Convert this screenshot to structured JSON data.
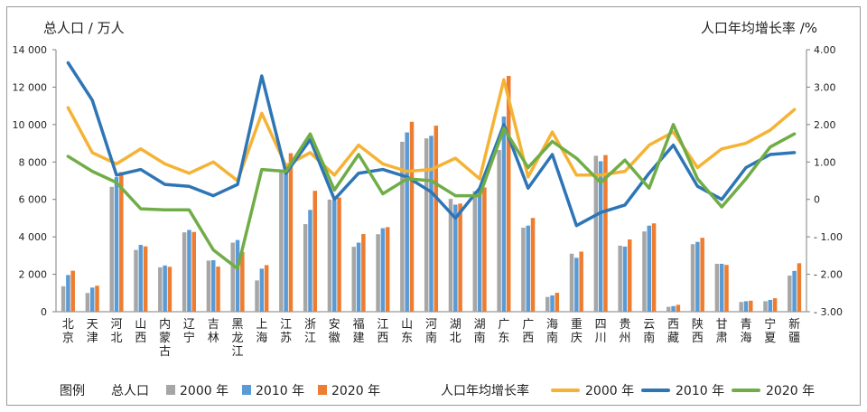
{
  "chart_data": {
    "type": "bar+line",
    "left_axis_label": "总人口 / 万人",
    "right_axis_label": "人口年均增长率 /%",
    "left_ylim": [
      0,
      14000
    ],
    "left_ticks": [
      0,
      2000,
      4000,
      6000,
      8000,
      10000,
      12000,
      14000
    ],
    "left_tick_labels": [
      "0",
      "2 000",
      "4 000",
      "6 000",
      "8 000",
      "10 000",
      "12 000",
      "14 000"
    ],
    "right_ylim": [
      -3,
      4
    ],
    "right_ticks": [
      -3,
      -2,
      -1,
      0,
      1,
      2,
      3,
      4
    ],
    "right_tick_labels": [
      "- 3.00",
      "- 2.00",
      "- 1.00",
      "0",
      "1.00",
      "2.00",
      "3.00",
      "4.00"
    ],
    "categories": [
      "北\n京",
      "天\n津",
      "河\n北",
      "山\n西",
      "内\n蒙\n古",
      "辽\n宁",
      "吉\n林",
      "黑\n龙\n江",
      "上\n海",
      "江\n苏",
      "浙\n江",
      "安\n徽",
      "福\n建",
      "江\n西",
      "山\n东",
      "河\n南",
      "湖\n北",
      "湖\n南",
      "广\n东",
      "广\n西",
      "海\n南",
      "重\n庆",
      "四\n川",
      "贵\n州",
      "云\n南",
      "西\n藏",
      "陕\n西",
      "甘\n肃",
      "青\n海",
      "宁\n夏",
      "新\n疆"
    ],
    "bar_series": [
      {
        "name": "2000 年",
        "color": "#a6a6a6",
        "values": [
          1360,
          1000,
          6670,
          3300,
          2370,
          4240,
          2730,
          3690,
          1670,
          7440,
          4680,
          5990,
          3470,
          4140,
          9080,
          9260,
          6030,
          6440,
          8640,
          4490,
          790,
          3100,
          8330,
          3530,
          4290,
          260,
          3610,
          2560,
          520,
          560,
          1930
        ]
      },
      {
        "name": "2010 年",
        "color": "#5b9bd5",
        "values": [
          1960,
          1290,
          7190,
          3570,
          2470,
          4370,
          2750,
          3830,
          2300,
          7870,
          5440,
          5950,
          3690,
          4460,
          9580,
          9400,
          5720,
          6570,
          10430,
          4600,
          870,
          2880,
          8040,
          3480,
          4600,
          300,
          3730,
          2560,
          560,
          630,
          2180
        ]
      },
      {
        "name": "2020 年",
        "color": "#ed7d31",
        "values": [
          2190,
          1390,
          7460,
          3490,
          2400,
          4260,
          2410,
          3190,
          2490,
          8470,
          6460,
          6100,
          4150,
          4520,
          10150,
          9940,
          5780,
          6640,
          12600,
          5010,
          1010,
          3210,
          8370,
          3860,
          4720,
          370,
          3950,
          2500,
          590,
          720,
          2590
        ]
      }
    ],
    "line_series": [
      {
        "name": "2000 年",
        "color": "#f5b335",
        "values": [
          2.45,
          1.25,
          0.95,
          1.35,
          0.95,
          0.7,
          1.0,
          0.5,
          2.3,
          0.9,
          1.25,
          0.65,
          1.45,
          0.95,
          0.75,
          0.8,
          1.1,
          0.55,
          3.2,
          0.6,
          1.8,
          0.65,
          0.65,
          0.75,
          1.45,
          1.8,
          0.85,
          1.35,
          1.5,
          1.85,
          2.4
        ]
      },
      {
        "name": "2010 年",
        "color": "#2e75b6",
        "values": [
          3.65,
          2.65,
          0.65,
          0.8,
          0.4,
          0.35,
          0.1,
          0.4,
          3.3,
          0.7,
          1.6,
          0.0,
          0.7,
          0.8,
          0.6,
          0.2,
          -0.5,
          0.3,
          2.0,
          0.3,
          1.2,
          -0.7,
          -0.35,
          -0.15,
          0.7,
          1.45,
          0.35,
          0.0,
          0.85,
          1.2,
          1.25
        ]
      },
      {
        "name": "2020 年",
        "color": "#70ad47",
        "values": [
          1.15,
          0.75,
          0.45,
          -0.25,
          -0.28,
          -0.28,
          -1.35,
          -1.85,
          0.8,
          0.75,
          1.75,
          0.25,
          1.2,
          0.15,
          0.55,
          0.5,
          0.1,
          0.1,
          1.9,
          0.85,
          1.55,
          1.1,
          0.45,
          1.05,
          0.3,
          2.0,
          0.55,
          -0.2,
          0.55,
          1.4,
          1.75
        ]
      }
    ],
    "legend": {
      "title": "图例",
      "bar_group_label": "总人口",
      "line_group_label": "人口年均增长率",
      "position": "bottom"
    },
    "grid": false
  }
}
